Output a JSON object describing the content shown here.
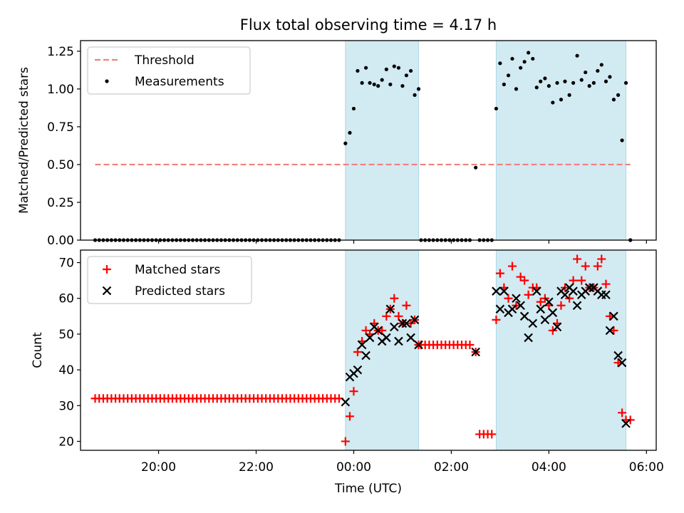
{
  "title": "Flux total observing time = 4.17 h",
  "xlabel": "Time (UTC)",
  "x_ticks": [
    "20:00",
    "22:00",
    "00:00",
    "02:00",
    "04:00",
    "06:00"
  ],
  "colors": {
    "threshold": "#f08080",
    "measurements": "#000000",
    "matched": "#ff0000",
    "predicted": "#000000",
    "shade": "#add8e6"
  },
  "chart_data": [
    {
      "type": "scatter",
      "title": "Flux total observing time = 4.17 h",
      "ylabel": "Matched/Predicted stars",
      "xlabel": "",
      "x_unit": "hours relative to 00:00 UTC",
      "xlim": [
        -5.6,
        6.2
      ],
      "ylim": [
        0,
        1.32
      ],
      "y_ticks": [
        "0.00",
        "0.25",
        "0.50",
        "0.75",
        "1.00",
        "1.25"
      ],
      "shaded_intervals": [
        [
          -0.17,
          1.33
        ],
        [
          2.92,
          5.58
        ]
      ],
      "legend": {
        "position": "top-left",
        "entries": [
          "Threshold",
          "Measurements"
        ]
      },
      "threshold": {
        "name": "Threshold",
        "x": [
          -5.3,
          5.67
        ],
        "y": 0.5
      },
      "measurements": {
        "name": "Measurements",
        "zeros_x": [
          [
            -5.3,
            -0.25
          ],
          [
            1.38,
            2.38
          ],
          [
            2.58,
            2.88
          ],
          [
            5.67,
            5.67
          ]
        ],
        "points": [
          [
            -0.17,
            0.64
          ],
          [
            -0.08,
            0.71
          ],
          [
            0.0,
            0.87
          ],
          [
            0.08,
            1.12
          ],
          [
            0.17,
            1.04
          ],
          [
            0.25,
            1.14
          ],
          [
            0.33,
            1.04
          ],
          [
            0.42,
            1.03
          ],
          [
            0.5,
            1.02
          ],
          [
            0.58,
            1.06
          ],
          [
            0.67,
            1.13
          ],
          [
            0.75,
            1.03
          ],
          [
            0.83,
            1.15
          ],
          [
            0.92,
            1.14
          ],
          [
            1.0,
            1.02
          ],
          [
            1.08,
            1.09
          ],
          [
            1.17,
            1.12
          ],
          [
            1.25,
            0.96
          ],
          [
            1.33,
            1.0
          ],
          [
            2.5,
            0.48
          ],
          [
            2.92,
            0.87
          ],
          [
            3.0,
            1.17
          ],
          [
            3.08,
            1.03
          ],
          [
            3.17,
            1.09
          ],
          [
            3.25,
            1.2
          ],
          [
            3.33,
            1.0
          ],
          [
            3.42,
            1.14
          ],
          [
            3.5,
            1.18
          ],
          [
            3.58,
            1.24
          ],
          [
            3.67,
            1.2
          ],
          [
            3.75,
            1.01
          ],
          [
            3.83,
            1.05
          ],
          [
            3.92,
            1.07
          ],
          [
            4.0,
            1.02
          ],
          [
            4.08,
            0.91
          ],
          [
            4.17,
            1.04
          ],
          [
            4.25,
            0.93
          ],
          [
            4.33,
            1.05
          ],
          [
            4.42,
            0.96
          ],
          [
            4.5,
            1.04
          ],
          [
            4.58,
            1.22
          ],
          [
            4.67,
            1.06
          ],
          [
            4.75,
            1.11
          ],
          [
            4.83,
            1.02
          ],
          [
            4.92,
            1.04
          ],
          [
            5.0,
            1.12
          ],
          [
            5.08,
            1.16
          ],
          [
            5.17,
            1.05
          ],
          [
            5.25,
            1.08
          ],
          [
            5.33,
            0.93
          ],
          [
            5.42,
            0.96
          ],
          [
            5.5,
            0.66
          ],
          [
            5.58,
            1.04
          ],
          [
            5.67,
            0.0
          ]
        ]
      }
    },
    {
      "type": "scatter",
      "ylabel": "Count",
      "xlabel": "Time (UTC)",
      "x_unit": "hours relative to 00:00 UTC",
      "xlim": [
        -5.6,
        6.2
      ],
      "ylim": [
        17.5,
        73.5
      ],
      "y_ticks": [
        "20",
        "30",
        "40",
        "50",
        "60",
        "70"
      ],
      "shaded_intervals": [
        [
          -0.17,
          1.33
        ],
        [
          2.92,
          5.58
        ]
      ],
      "legend": {
        "position": "top-left",
        "entries": [
          "Matched stars",
          "Predicted stars"
        ]
      },
      "matched_baseline": {
        "x_range": [
          -5.3,
          -0.25
        ],
        "y": 32
      },
      "matched_plateau": {
        "x_range": [
          1.38,
          2.38
        ],
        "y": 47
      },
      "matched_low": {
        "x_range": [
          2.58,
          2.88
        ],
        "y": 22
      },
      "matched_stars": {
        "name": "Matched stars",
        "points": [
          [
            -0.17,
            20
          ],
          [
            -0.08,
            27
          ],
          [
            0.0,
            34
          ],
          [
            0.08,
            45
          ],
          [
            0.17,
            48
          ],
          [
            0.25,
            51
          ],
          [
            0.33,
            50
          ],
          [
            0.42,
            53
          ],
          [
            0.5,
            51
          ],
          [
            0.58,
            51
          ],
          [
            0.67,
            55
          ],
          [
            0.75,
            57
          ],
          [
            0.83,
            60
          ],
          [
            0.92,
            55
          ],
          [
            1.0,
            53
          ],
          [
            1.08,
            58
          ],
          [
            1.17,
            53
          ],
          [
            1.25,
            54
          ],
          [
            1.33,
            47
          ],
          [
            2.5,
            45
          ],
          [
            2.92,
            54
          ],
          [
            3.0,
            67
          ],
          [
            3.08,
            63
          ],
          [
            3.17,
            60
          ],
          [
            3.25,
            69
          ],
          [
            3.33,
            58
          ],
          [
            3.42,
            66
          ],
          [
            3.5,
            65
          ],
          [
            3.58,
            61
          ],
          [
            3.67,
            63
          ],
          [
            3.75,
            63
          ],
          [
            3.83,
            59
          ],
          [
            3.92,
            60
          ],
          [
            4.0,
            58
          ],
          [
            4.08,
            51
          ],
          [
            4.17,
            53
          ],
          [
            4.25,
            58
          ],
          [
            4.33,
            63
          ],
          [
            4.42,
            60
          ],
          [
            4.5,
            65
          ],
          [
            4.58,
            71
          ],
          [
            4.67,
            65
          ],
          [
            4.75,
            69
          ],
          [
            4.83,
            63
          ],
          [
            4.92,
            63
          ],
          [
            5.0,
            69
          ],
          [
            5.08,
            71
          ],
          [
            5.17,
            64
          ],
          [
            5.25,
            55
          ],
          [
            5.33,
            51
          ],
          [
            5.42,
            42
          ],
          [
            5.5,
            28
          ],
          [
            5.58,
            26
          ],
          [
            5.67,
            26
          ]
        ]
      },
      "predicted_stars": {
        "name": "Predicted stars",
        "points": [
          [
            -0.17,
            31
          ],
          [
            -0.08,
            38
          ],
          [
            0.0,
            39
          ],
          [
            0.08,
            40
          ],
          [
            0.17,
            47
          ],
          [
            0.25,
            44
          ],
          [
            0.33,
            49
          ],
          [
            0.42,
            52
          ],
          [
            0.5,
            51
          ],
          [
            0.58,
            48
          ],
          [
            0.67,
            49
          ],
          [
            0.75,
            57
          ],
          [
            0.83,
            52
          ],
          [
            0.92,
            48
          ],
          [
            1.0,
            53
          ],
          [
            1.08,
            53
          ],
          [
            1.17,
            49
          ],
          [
            1.25,
            54
          ],
          [
            1.33,
            47
          ],
          [
            2.5,
            45
          ],
          [
            2.92,
            62
          ],
          [
            3.0,
            57
          ],
          [
            3.08,
            62
          ],
          [
            3.17,
            56
          ],
          [
            3.25,
            57
          ],
          [
            3.33,
            60
          ],
          [
            3.42,
            58
          ],
          [
            3.5,
            55
          ],
          [
            3.58,
            49
          ],
          [
            3.67,
            53
          ],
          [
            3.75,
            62
          ],
          [
            3.83,
            57
          ],
          [
            3.92,
            54
          ],
          [
            4.0,
            59
          ],
          [
            4.08,
            56
          ],
          [
            4.17,
            52
          ],
          [
            4.25,
            62
          ],
          [
            4.33,
            61
          ],
          [
            4.42,
            63
          ],
          [
            4.5,
            62
          ],
          [
            4.58,
            58
          ],
          [
            4.67,
            61
          ],
          [
            4.75,
            62
          ],
          [
            4.83,
            63
          ],
          [
            4.92,
            63
          ],
          [
            5.0,
            62
          ],
          [
            5.08,
            61
          ],
          [
            5.17,
            61
          ],
          [
            5.25,
            51
          ],
          [
            5.33,
            55
          ],
          [
            5.42,
            44
          ],
          [
            5.5,
            42
          ],
          [
            5.58,
            25
          ]
        ]
      }
    }
  ]
}
